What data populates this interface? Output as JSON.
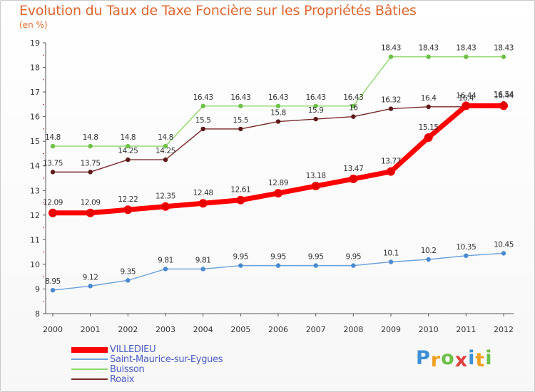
{
  "chart_data": {
    "type": "line",
    "title": "Evolution du Taux de Taxe Foncière sur les Propriétés Bâties",
    "subtitle": "(en %)",
    "x": [
      "2000",
      "2001",
      "2002",
      "2003",
      "2004",
      "2005",
      "2006",
      "2007",
      "2008",
      "2009",
      "2010",
      "2011",
      "2012"
    ],
    "ylim": [
      8,
      19
    ],
    "yticks": [
      "8",
      "9",
      "10",
      "11",
      "12",
      "13",
      "14",
      "15",
      "16",
      "17",
      "18",
      "19"
    ],
    "grid": false,
    "series": [
      {
        "name": "Buisson",
        "color": "#8fd86c",
        "point_color": "#6ec046",
        "values": [
          14.8,
          14.8,
          14.8,
          14.8,
          16.43,
          16.43,
          16.43,
          16.43,
          16.43,
          18.43,
          18.43,
          18.43,
          18.43
        ],
        "labels": [
          "14.8",
          "14.8",
          "14.8",
          "14.8",
          "16.43",
          "16.43",
          "16.43",
          "16.43",
          "16.43",
          "18.43",
          "18.43",
          "18.43",
          "18.43"
        ]
      },
      {
        "name": "Roaix",
        "color": "#7a2a2a",
        "point_color": "#5e1a1a",
        "values": [
          13.75,
          13.75,
          14.25,
          14.25,
          15.5,
          15.5,
          15.8,
          15.9,
          16,
          16.32,
          16.4,
          16.4,
          16.54
        ],
        "labels": [
          "13.75",
          "13.75",
          "14.25",
          "14.25",
          "15.5",
          "15.5",
          "15.8",
          "15.9",
          "16",
          "16.32",
          "16.4",
          "16.4",
          "16.54"
        ]
      },
      {
        "name": "Saint-Maurice-sur-Eygues",
        "color": "#6aa0d8",
        "point_color": "#4a8ad0",
        "values": [
          8.95,
          9.12,
          9.35,
          9.81,
          9.81,
          9.95,
          9.95,
          9.95,
          9.95,
          10.1,
          10.2,
          10.35,
          10.45
        ],
        "labels": [
          "8.95",
          "9.12",
          "9.35",
          "9.81",
          "9.81",
          "9.95",
          "9.95",
          "9.95",
          "9.95",
          "10.1",
          "10.2",
          "10.35",
          "10.45"
        ]
      },
      {
        "name": "VILLEDIEU",
        "color": "#ff0000",
        "point_color": "#e60000",
        "values": [
          12.09,
          12.09,
          12.22,
          12.35,
          12.48,
          12.61,
          12.89,
          13.18,
          13.47,
          13.77,
          15.15,
          16.44,
          16.44
        ],
        "labels": [
          "12.09",
          "12.09",
          "12.22",
          "12.35",
          "12.48",
          "12.61",
          "12.89",
          "13.18",
          "13.47",
          "13.77",
          "15.15",
          "16.44",
          "16.44"
        ]
      }
    ],
    "legend": [
      {
        "name": "VILLEDIEU",
        "color": "#ff0000"
      },
      {
        "name": "Saint-Maurice-sur-Eygues",
        "color": "#6aa0d8"
      },
      {
        "name": "Buisson",
        "color": "#8fd86c"
      },
      {
        "name": "Roaix",
        "color": "#7a2a2a"
      }
    ],
    "legend_position": "bottom-left"
  },
  "brand": {
    "letters": [
      "P",
      "r",
      "o",
      "x",
      "i",
      "t",
      "i"
    ],
    "colors": [
      "#3b8fd6",
      "#f0a020",
      "#6cc048",
      "#e04040",
      "#3b8fd6",
      "#f0a020",
      "#6cc048"
    ]
  }
}
